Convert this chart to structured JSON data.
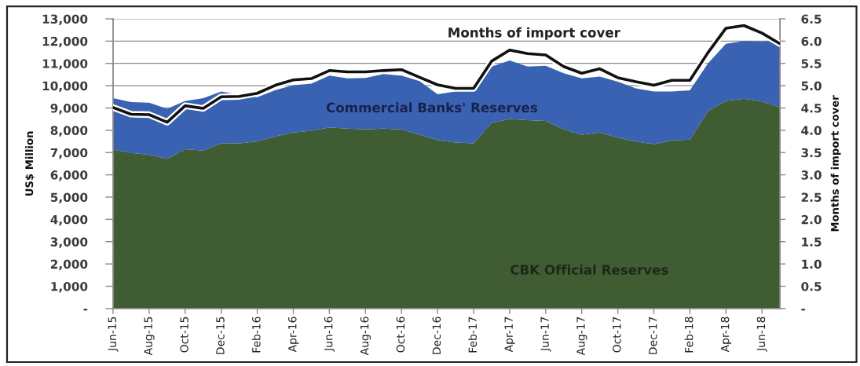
{
  "chart_data": {
    "type": "area",
    "stacked": true,
    "ylabel": "US$ Million",
    "y2label": "Months of import cover",
    "grid": "y",
    "categories": [
      "Jun-15",
      null,
      "Aug-15",
      null,
      "Oct-15",
      null,
      "Dec-15",
      null,
      "Feb-16",
      null,
      "Apr-16",
      null,
      "Jun-16",
      null,
      "Aug-16",
      null,
      "Oct-16",
      null,
      "Dec-16",
      null,
      "Feb-17",
      null,
      "Apr-17",
      null,
      "Jun-17",
      null,
      "Aug-17",
      null,
      "Oct-17",
      null,
      "Dec-17",
      null,
      "Feb-18",
      null,
      "Apr-18",
      null,
      "Jun-18",
      null
    ],
    "ylim": [
      0,
      13000
    ],
    "yticks": [
      {
        "value": 0,
        "label": "-"
      },
      {
        "value": 1000,
        "label": "1,000"
      },
      {
        "value": 2000,
        "label": "2,000"
      },
      {
        "value": 3000,
        "label": "3,000"
      },
      {
        "value": 4000,
        "label": "4,000"
      },
      {
        "value": 5000,
        "label": "5,000"
      },
      {
        "value": 6000,
        "label": "6,000"
      },
      {
        "value": 7000,
        "label": "7,000"
      },
      {
        "value": 8000,
        "label": "8,000"
      },
      {
        "value": 9000,
        "label": "9,000"
      },
      {
        "value": 10000,
        "label": "10,000"
      },
      {
        "value": 11000,
        "label": "11,000"
      },
      {
        "value": 12000,
        "label": "12,000"
      },
      {
        "value": 13000,
        "label": "13,000"
      }
    ],
    "y2lim": [
      0,
      6.5
    ],
    "y2ticks": [
      {
        "value": 0,
        "label": "-"
      },
      0.5,
      {
        "value": 1,
        "label": "1.0"
      },
      1.5,
      {
        "value": 2,
        "label": "2.0"
      },
      2.5,
      {
        "value": 3,
        "label": "3.0"
      },
      3.5,
      {
        "value": 4,
        "label": "4.0"
      },
      4.5,
      {
        "value": 5,
        "label": "5.0"
      },
      5.5,
      {
        "value": 6,
        "label": "6.0"
      },
      6.5
    ],
    "series": [
      {
        "name": "CBK Official Reserves",
        "color": "#3f5c33",
        "values": [
          7130,
          6980,
          6900,
          6720,
          7150,
          7090,
          7420,
          7410,
          7500,
          7720,
          7900,
          7980,
          8130,
          8070,
          8040,
          8070,
          8040,
          7800,
          7560,
          7450,
          7410,
          8330,
          8510,
          8450,
          8420,
          8040,
          7800,
          7900,
          7670,
          7490,
          7380,
          7550,
          7580,
          8850,
          9320,
          9410,
          9290,
          9030
        ]
      },
      {
        "name": "Commercial Banks' Reserves",
        "color": "#3a62b3",
        "values": [
          2310,
          2280,
          2340,
          2240,
          2170,
          2350,
          2320,
          2190,
          1980,
          2080,
          2120,
          2110,
          2320,
          2260,
          2310,
          2450,
          2410,
          2410,
          2060,
          2290,
          2450,
          2530,
          2620,
          2410,
          2470,
          2520,
          2530,
          2510,
          2510,
          2390,
          2360,
          2190,
          2210,
          2150,
          2560,
          2590,
          2690,
          3030
        ]
      },
      {
        "name": "Months of import cover",
        "type": "line",
        "axis": "y2",
        "color": "#111111",
        "values": [
          4.51,
          4.36,
          4.35,
          4.18,
          4.55,
          4.49,
          4.75,
          4.76,
          4.83,
          5.01,
          5.13,
          5.16,
          5.34,
          5.31,
          5.31,
          5.34,
          5.36,
          5.19,
          5.02,
          4.94,
          4.94,
          5.55,
          5.8,
          5.72,
          5.69,
          5.43,
          5.28,
          5.38,
          5.18,
          5.09,
          5.01,
          5.12,
          5.12,
          5.74,
          6.29,
          6.35,
          6.18,
          5.94
        ]
      }
    ]
  }
}
